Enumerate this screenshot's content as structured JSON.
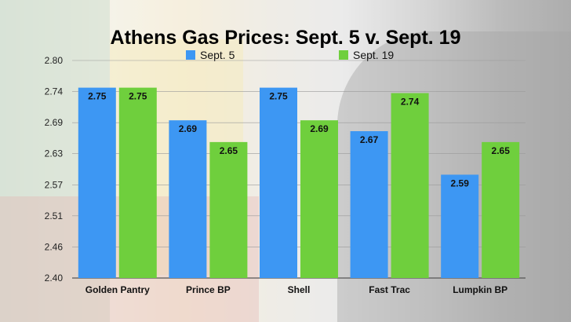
{
  "chart_data": {
    "type": "bar",
    "title": "Athens Gas Prices: Sept. 5 v. Sept. 19",
    "categories": [
      "Golden Pantry",
      "Prince BP",
      "Shell",
      "Fast Trac",
      "Lumpkin BP"
    ],
    "series": [
      {
        "name": "Sept. 5",
        "color": "#3d97f3",
        "values": [
          2.75,
          2.69,
          2.75,
          2.67,
          2.59
        ]
      },
      {
        "name": "Sept. 19",
        "color": "#6fcf3d",
        "values": [
          2.75,
          2.65,
          2.69,
          2.74,
          2.65
        ]
      }
    ],
    "yticks": [
      "2.80",
      "2.74",
      "2.69",
      "2.63",
      "2.57",
      "2.51",
      "2.46",
      "2.40"
    ],
    "ylim": [
      2.4,
      2.8
    ],
    "legend_position": "top-center",
    "grid": true
  }
}
